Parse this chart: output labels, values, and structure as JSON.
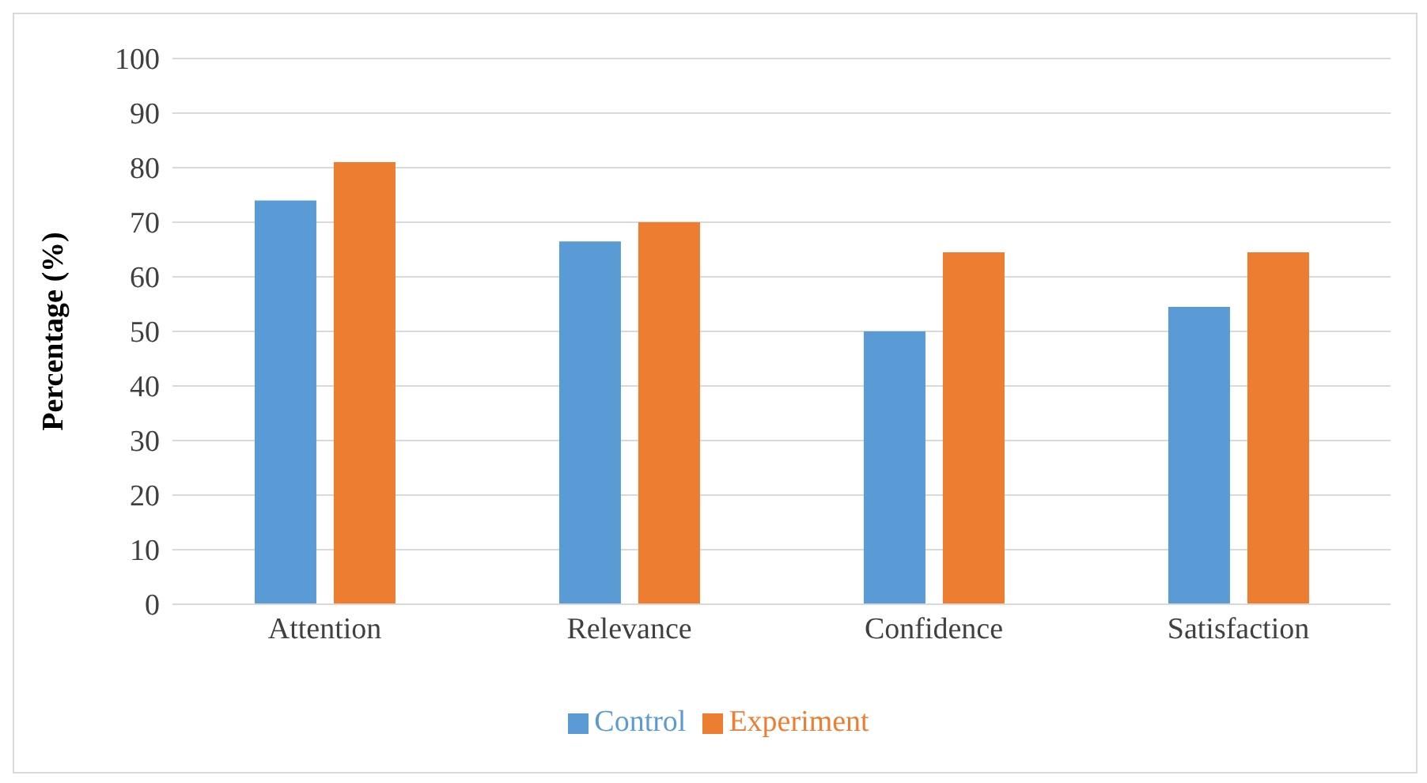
{
  "chart_data": {
    "type": "bar",
    "ylabel": "Percentage (%)",
    "categories": [
      "Attention",
      "Relevance",
      "Confidence",
      "Satisfaction"
    ],
    "series": [
      {
        "name": "Control",
        "color": "#5b9bd5",
        "values": [
          74,
          66.5,
          50,
          54.5
        ]
      },
      {
        "name": "Experiment",
        "color": "#ed7d31",
        "values": [
          81,
          70,
          64.5,
          64.5
        ]
      }
    ],
    "ylim": [
      0,
      100
    ],
    "yticks": [
      0,
      10,
      20,
      30,
      40,
      50,
      60,
      70,
      80,
      90,
      100
    ],
    "grid": "y",
    "legend": "bottom"
  }
}
